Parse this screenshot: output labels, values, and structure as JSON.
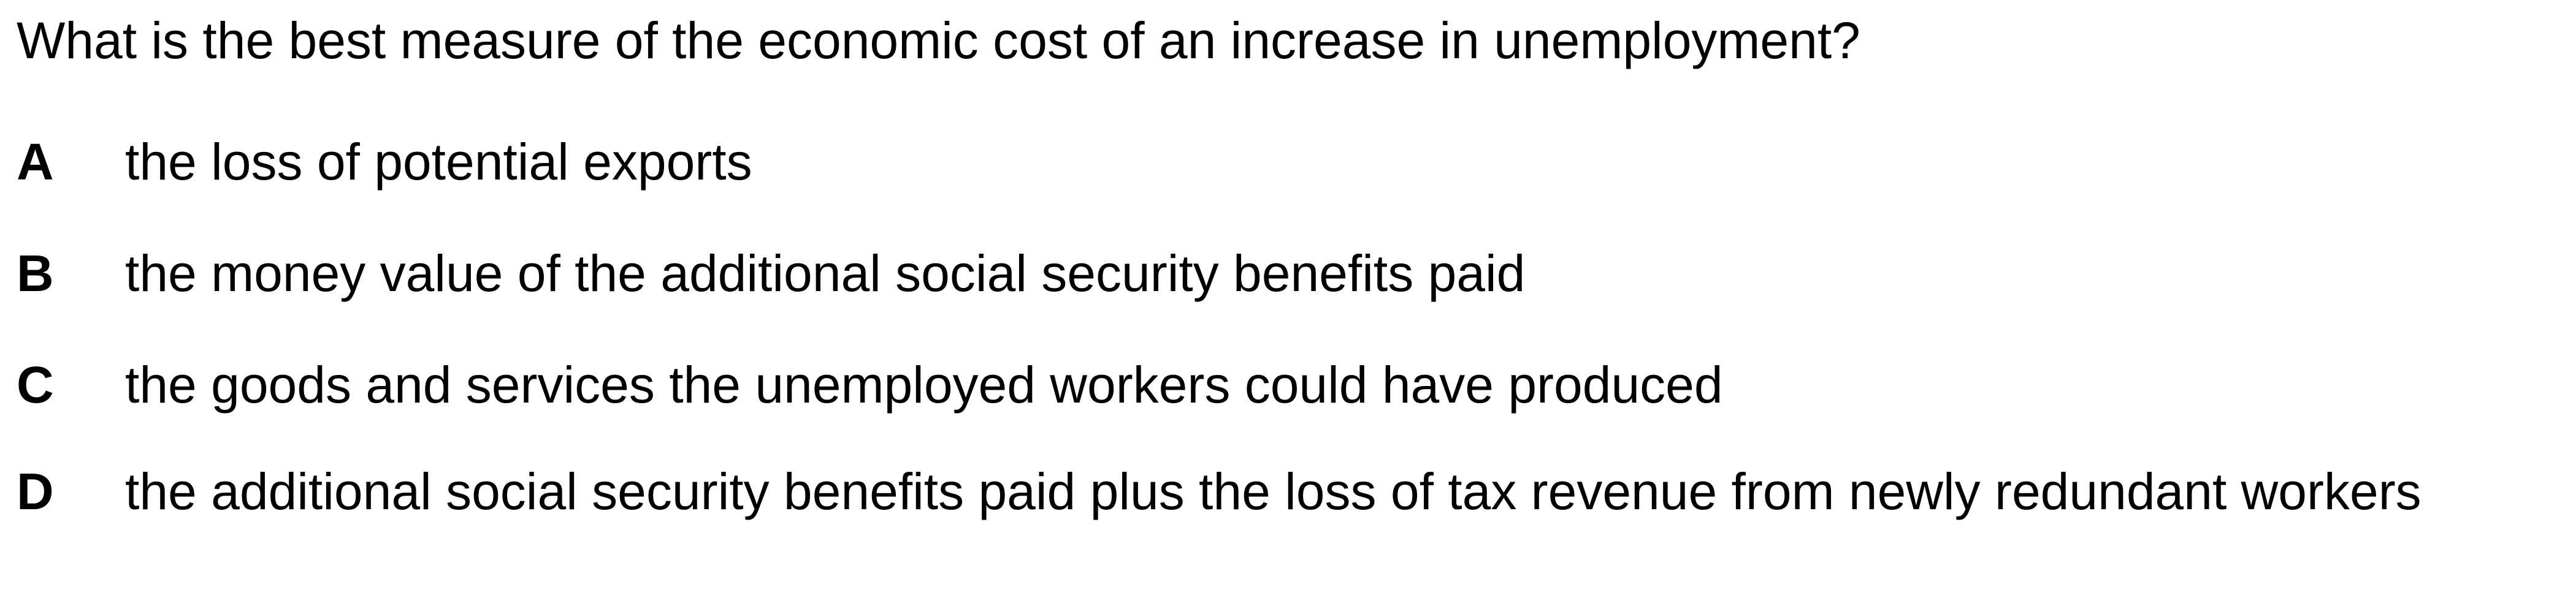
{
  "question": "What is the best measure of the economic cost of an increase in unemployment?",
  "options": [
    {
      "letter": "A",
      "text": "the loss of potential exports"
    },
    {
      "letter": "B",
      "text": "the money value of the additional social security benefits paid"
    },
    {
      "letter": "C",
      "text": "the goods and services the unemployed workers could have produced"
    },
    {
      "letter": "D",
      "text": "the additional social security benefits paid plus the loss of tax revenue from newly redundant workers"
    }
  ]
}
